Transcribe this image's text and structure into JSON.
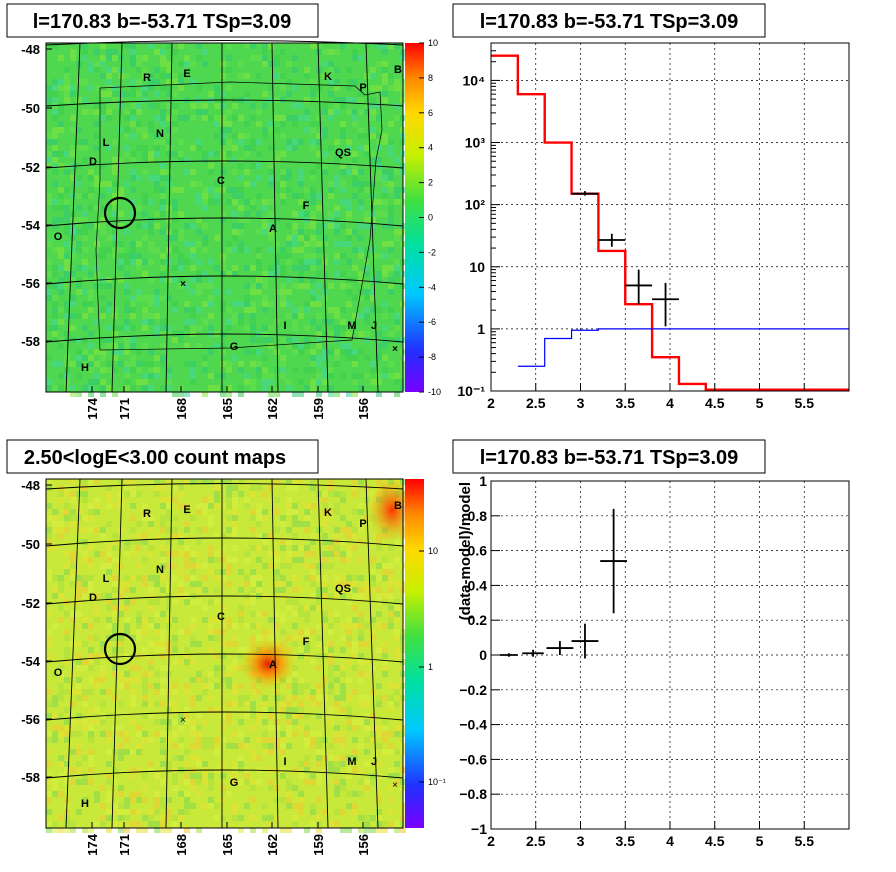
{
  "sky_maps": [
    {
      "title": "l=170.83 b=-53.71 TSp=3.09",
      "colorbar": {
        "scale": "linear",
        "range": [
          -10,
          10
        ],
        "ticks": [
          "10",
          "8",
          "6",
          "4",
          "2",
          "0",
          "-2",
          "-4",
          "-6",
          "-8",
          "-10"
        ]
      },
      "background_color": "#4fd84f"
    },
    {
      "title": "2.50<logE<3.00 count maps",
      "colorbar": {
        "scale": "log",
        "ticks": [
          "10",
          "1",
          "10⁻¹"
        ]
      },
      "background_color": "#c8e83a"
    }
  ],
  "map_axes": {
    "y_ticks": [
      "-48",
      "-50",
      "-52",
      "-54",
      "-56",
      "-58"
    ],
    "x_ticks": [
      "174",
      "171",
      "168",
      "165",
      "162",
      "159",
      "156"
    ]
  },
  "map_labels": [
    "R",
    "E",
    "K",
    "P",
    "B",
    "L",
    "N",
    "D",
    "QS",
    "C",
    "F",
    "A",
    "O",
    "I",
    "M",
    "J",
    "G",
    "H"
  ],
  "chart_data": [
    {
      "type": "line",
      "title": "l=170.83 b=-53.71 TSp=3.09",
      "xlim": [
        2,
        6
      ],
      "ylim": [
        0.1,
        40000
      ],
      "yscale": "log",
      "grid": true,
      "x_ticks": [
        "2",
        "2.5",
        "3",
        "3.5",
        "4",
        "4.5",
        "5",
        "5.5"
      ],
      "y_ticks": [
        "10⁴",
        "10³",
        "10²",
        "10",
        "1",
        "10⁻¹"
      ],
      "series": [
        {
          "style": "step",
          "color": "#ff0000",
          "bins": [
            [
              2.0,
              2.3,
              25000
            ],
            [
              2.3,
              2.6,
              6000
            ],
            [
              2.6,
              2.9,
              1000
            ],
            [
              2.9,
              3.2,
              150
            ],
            [
              3.2,
              3.5,
              18
            ],
            [
              3.5,
              3.8,
              2.5
            ],
            [
              3.8,
              4.1,
              0.35
            ],
            [
              4.1,
              4.4,
              0.13
            ],
            [
              4.4,
              6.0,
              0.105
            ]
          ]
        },
        {
          "style": "step",
          "color": "#0000ff",
          "bins": [
            [
              2.3,
              2.6,
              0.25
            ],
            [
              2.6,
              2.9,
              0.7
            ],
            [
              2.9,
              3.2,
              0.95
            ],
            [
              3.2,
              6.0,
              1.0
            ]
          ]
        },
        {
          "style": "errorbar",
          "color": "#000000",
          "points": [
            {
              "x": 3.05,
              "xerr": 0.15,
              "y": 150,
              "ylo": 140,
              "yhi": 165
            },
            {
              "x": 3.35,
              "xerr": 0.15,
              "y": 27,
              "ylo": 21,
              "yhi": 34
            },
            {
              "x": 3.65,
              "xerr": 0.15,
              "y": 5,
              "ylo": 2.5,
              "yhi": 9
            },
            {
              "x": 3.95,
              "xerr": 0.15,
              "y": 3,
              "ylo": 1.1,
              "yhi": 5.5
            }
          ]
        }
      ]
    },
    {
      "type": "scatter",
      "title": "l=170.83 b=-53.71 TSp=3.09",
      "ylabel": "(data-model)/model",
      "xlim": [
        2,
        6
      ],
      "ylim": [
        -1,
        1
      ],
      "grid": true,
      "x_ticks": [
        "2",
        "2.5",
        "3",
        "3.5",
        "4",
        "4.5",
        "5",
        "5.5"
      ],
      "y_ticks": [
        "1",
        "0.8",
        "0.6",
        "0.4",
        "0.2",
        "0",
        "−0.2",
        "−0.4",
        "−0.6",
        "−0.8",
        "−1"
      ],
      "points": [
        {
          "x": 2.2,
          "xerr": 0.1,
          "y": 0.0,
          "yerr": 0.01
        },
        {
          "x": 2.47,
          "xerr": 0.12,
          "y": 0.01,
          "yerr": 0.02
        },
        {
          "x": 2.77,
          "xerr": 0.15,
          "y": 0.04,
          "yerr": 0.04
        },
        {
          "x": 3.05,
          "xerr": 0.15,
          "y": 0.08,
          "yerr": 0.1
        },
        {
          "x": 3.37,
          "xerr": 0.15,
          "y": 0.54,
          "yerr": 0.3
        }
      ]
    }
  ]
}
